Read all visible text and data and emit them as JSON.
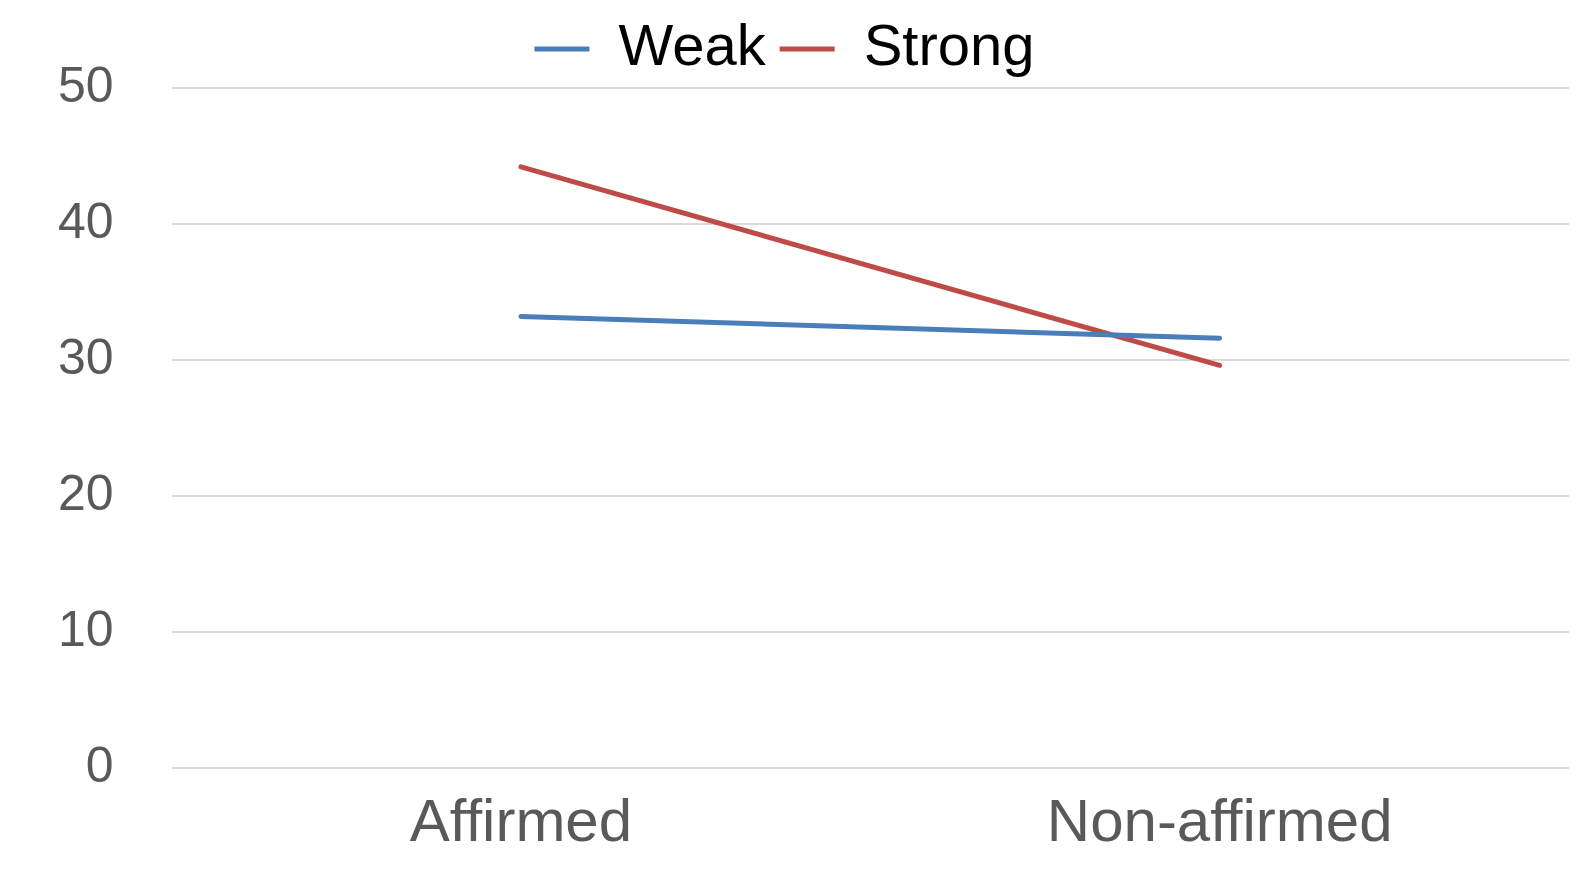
{
  "chart_data": {
    "type": "line",
    "categories": [
      "Affirmed",
      "Non-affirmed"
    ],
    "series": [
      {
        "name": "Weak",
        "color": "#4a7ebb",
        "values": [
          33.2,
          31.6
        ]
      },
      {
        "name": "Strong",
        "color": "#be4b48",
        "values": [
          44.2,
          29.6
        ]
      }
    ],
    "ylim": [
      0,
      50
    ],
    "yticks": [
      0,
      10,
      20,
      30,
      40,
      50
    ],
    "grid": "y",
    "legend": "top",
    "marker": "none",
    "line_style": "solid"
  }
}
